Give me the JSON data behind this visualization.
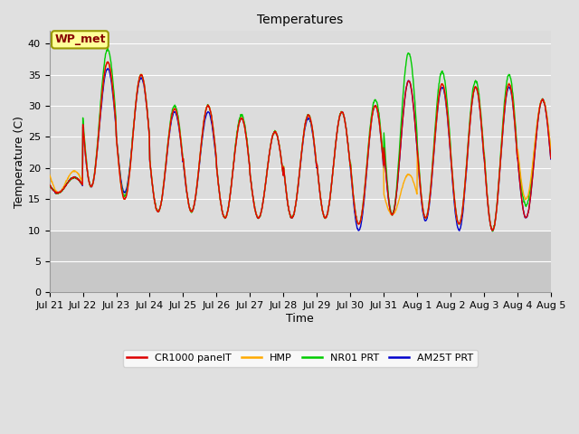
{
  "title": "Temperatures",
  "xlabel": "Time",
  "ylabel": "Temperature (C)",
  "ylim": [
    0,
    42
  ],
  "yticks": [
    0,
    5,
    10,
    15,
    20,
    25,
    30,
    35,
    40
  ],
  "fig_bg": "#e0e0e0",
  "plot_bg_upper": "#dcdcdc",
  "plot_bg_lower": "#c8c8c8",
  "lower_threshold": 10,
  "legend_labels": [
    "CR1000 panelT",
    "HMP",
    "NR01 PRT",
    "AM25T PRT"
  ],
  "legend_colors": [
    "#dd0000",
    "#ffaa00",
    "#00cc00",
    "#0000cc"
  ],
  "annotation_text": "WP_met",
  "annotation_bg": "#ffff99",
  "annotation_border": "#999900",
  "annotation_text_color": "#880000",
  "x_tick_labels": [
    "Jul 21",
    "Jul 22",
    "Jul 23",
    "Jul 24",
    "Jul 25",
    "Jul 26",
    "Jul 27",
    "Jul 28",
    "Jul 29",
    "Jul 30",
    "Jul 31",
    "Aug 1",
    "Aug 2",
    "Aug 3",
    "Aug 4",
    "Aug 5"
  ],
  "title_fontsize": 10,
  "axis_label_fontsize": 9,
  "tick_fontsize": 8,
  "legend_fontsize": 8
}
